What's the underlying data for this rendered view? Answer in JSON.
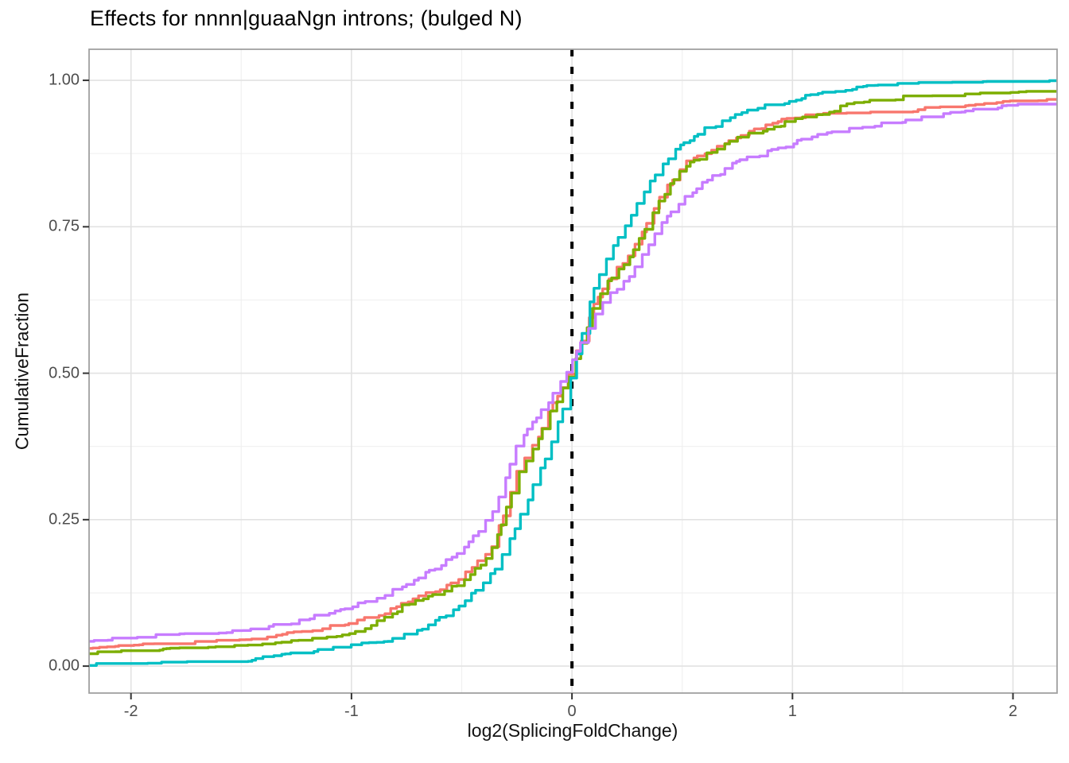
{
  "figure": {
    "background": "#FFFFFF"
  },
  "chart_data": {
    "type": "line",
    "variant": "ecdf-step-curves",
    "title": "Effects for nnnn|guaaNgn introns; (bulged N)",
    "xlabel": "log2(SplicingFoldChange)",
    "ylabel": "CumulativeFraction",
    "xlim": [
      -2.19,
      2.2
    ],
    "ylim": [
      -0.046,
      1.053
    ],
    "x_major_ticks": [
      -2,
      -1,
      0,
      1,
      2
    ],
    "x_tick_labels": [
      "-2",
      "-1",
      "0",
      "1",
      "2"
    ],
    "x_minor_ticks": [
      -1.5,
      -0.5,
      0.5,
      1.5
    ],
    "y_major_ticks": [
      0,
      0.25,
      0.5,
      0.75,
      1
    ],
    "y_tick_labels": [
      "0.00",
      "0.25",
      "0.50",
      "0.75",
      "1.00"
    ],
    "y_minor_ticks": [
      0.125,
      0.375,
      0.625,
      0.875
    ],
    "grid": "major-and-minor",
    "legend": "none",
    "reference_line": {
      "x": 0,
      "style": "dashed",
      "color": "#000000"
    },
    "panel_colors": {
      "background": "#FFFFFF",
      "border": "#A0A0A0",
      "grid_major": "#E2E2E2",
      "grid_minor": "#F0F0F0",
      "tick_mark": "#333333",
      "tick_label": "#4D4D4D"
    },
    "series": [
      {
        "name": "salmon-curve",
        "color": "#F8766D",
        "points": [
          [
            -2.2,
            0.03
          ],
          [
            -2.0,
            0.034
          ],
          [
            -1.75,
            0.038
          ],
          [
            -1.5,
            0.043
          ],
          [
            -1.25,
            0.056
          ],
          [
            -1.0,
            0.073
          ],
          [
            -0.85,
            0.09
          ],
          [
            -0.75,
            0.11
          ],
          [
            -0.6,
            0.13
          ],
          [
            -0.5,
            0.153
          ],
          [
            -0.4,
            0.185
          ],
          [
            -0.35,
            0.215
          ],
          [
            -0.3,
            0.27
          ],
          [
            -0.25,
            0.33
          ],
          [
            -0.2,
            0.36
          ],
          [
            -0.15,
            0.395
          ],
          [
            -0.1,
            0.44
          ],
          [
            -0.05,
            0.47
          ],
          [
            0,
            0.515
          ],
          [
            0.05,
            0.565
          ],
          [
            0.1,
            0.617
          ],
          [
            0.15,
            0.655
          ],
          [
            0.2,
            0.677
          ],
          [
            0.25,
            0.695
          ],
          [
            0.3,
            0.73
          ],
          [
            0.4,
            0.8
          ],
          [
            0.5,
            0.855
          ],
          [
            0.6,
            0.875
          ],
          [
            0.75,
            0.903
          ],
          [
            0.9,
            0.925
          ],
          [
            1.0,
            0.938
          ],
          [
            1.1,
            0.94
          ],
          [
            1.25,
            0.941
          ],
          [
            1.4,
            0.943
          ],
          [
            1.5,
            0.944
          ],
          [
            1.6,
            0.95
          ],
          [
            1.75,
            0.955
          ],
          [
            1.9,
            0.96
          ],
          [
            2.0,
            0.962
          ],
          [
            2.1,
            0.964
          ],
          [
            2.2,
            0.965
          ]
        ]
      },
      {
        "name": "green-curve",
        "color": "#7CAE00",
        "points": [
          [
            -2.2,
            0.021
          ],
          [
            -2.0,
            0.024
          ],
          [
            -1.75,
            0.028
          ],
          [
            -1.5,
            0.032
          ],
          [
            -1.25,
            0.041
          ],
          [
            -1.0,
            0.053
          ],
          [
            -0.9,
            0.07
          ],
          [
            -0.75,
            0.106
          ],
          [
            -0.6,
            0.122
          ],
          [
            -0.5,
            0.145
          ],
          [
            -0.4,
            0.175
          ],
          [
            -0.35,
            0.21
          ],
          [
            -0.3,
            0.265
          ],
          [
            -0.25,
            0.325
          ],
          [
            -0.2,
            0.355
          ],
          [
            -0.15,
            0.39
          ],
          [
            -0.1,
            0.435
          ],
          [
            -0.05,
            0.465
          ],
          [
            0,
            0.51
          ],
          [
            0.05,
            0.56
          ],
          [
            0.1,
            0.615
          ],
          [
            0.15,
            0.65
          ],
          [
            0.2,
            0.672
          ],
          [
            0.25,
            0.69
          ],
          [
            0.3,
            0.725
          ],
          [
            0.4,
            0.795
          ],
          [
            0.5,
            0.85
          ],
          [
            0.6,
            0.872
          ],
          [
            0.75,
            0.9
          ],
          [
            0.9,
            0.92
          ],
          [
            1.0,
            0.93
          ],
          [
            1.1,
            0.94
          ],
          [
            1.25,
            0.957
          ],
          [
            1.5,
            0.97
          ],
          [
            1.75,
            0.973
          ],
          [
            2.0,
            0.977
          ],
          [
            2.2,
            0.979
          ]
        ]
      },
      {
        "name": "teal-curve",
        "color": "#00BFC4",
        "points": [
          [
            -2.2,
            0.001
          ],
          [
            -2.0,
            0.003
          ],
          [
            -1.75,
            0.005
          ],
          [
            -1.5,
            0.008
          ],
          [
            -1.25,
            0.02
          ],
          [
            -1.0,
            0.034
          ],
          [
            -0.85,
            0.042
          ],
          [
            -0.75,
            0.052
          ],
          [
            -0.6,
            0.08
          ],
          [
            -0.5,
            0.108
          ],
          [
            -0.4,
            0.14
          ],
          [
            -0.35,
            0.165
          ],
          [
            -0.3,
            0.2
          ],
          [
            -0.25,
            0.245
          ],
          [
            -0.2,
            0.285
          ],
          [
            -0.15,
            0.33
          ],
          [
            -0.1,
            0.375
          ],
          [
            -0.05,
            0.43
          ],
          [
            0,
            0.5
          ],
          [
            0.05,
            0.575
          ],
          [
            0.1,
            0.645
          ],
          [
            0.15,
            0.69
          ],
          [
            0.2,
            0.725
          ],
          [
            0.25,
            0.755
          ],
          [
            0.3,
            0.79
          ],
          [
            0.4,
            0.855
          ],
          [
            0.5,
            0.89
          ],
          [
            0.6,
            0.915
          ],
          [
            0.75,
            0.94
          ],
          [
            0.9,
            0.958
          ],
          [
            1.0,
            0.965
          ],
          [
            1.1,
            0.975
          ],
          [
            1.25,
            0.985
          ],
          [
            1.5,
            0.992
          ],
          [
            1.75,
            0.994
          ],
          [
            2.0,
            0.995
          ],
          [
            2.2,
            0.996
          ]
        ]
      },
      {
        "name": "purple-curve",
        "color": "#C77CFF",
        "points": [
          [
            -2.2,
            0.042
          ],
          [
            -2.0,
            0.049
          ],
          [
            -1.75,
            0.053
          ],
          [
            -1.5,
            0.058
          ],
          [
            -1.25,
            0.075
          ],
          [
            -1.0,
            0.1
          ],
          [
            -0.85,
            0.12
          ],
          [
            -0.75,
            0.14
          ],
          [
            -0.6,
            0.17
          ],
          [
            -0.5,
            0.2
          ],
          [
            -0.4,
            0.24
          ],
          [
            -0.35,
            0.27
          ],
          [
            -0.3,
            0.32
          ],
          [
            -0.25,
            0.377
          ],
          [
            -0.2,
            0.405
          ],
          [
            -0.15,
            0.43
          ],
          [
            -0.1,
            0.455
          ],
          [
            -0.05,
            0.485
          ],
          [
            0,
            0.52
          ],
          [
            0.05,
            0.557
          ],
          [
            0.1,
            0.594
          ],
          [
            0.15,
            0.625
          ],
          [
            0.2,
            0.645
          ],
          [
            0.25,
            0.66
          ],
          [
            0.3,
            0.69
          ],
          [
            0.4,
            0.75
          ],
          [
            0.5,
            0.798
          ],
          [
            0.6,
            0.825
          ],
          [
            0.75,
            0.86
          ],
          [
            0.9,
            0.88
          ],
          [
            1.0,
            0.893
          ],
          [
            1.1,
            0.905
          ],
          [
            1.25,
            0.915
          ],
          [
            1.5,
            0.929
          ],
          [
            1.75,
            0.945
          ],
          [
            2.0,
            0.956
          ],
          [
            2.2,
            0.957
          ]
        ]
      }
    ]
  }
}
